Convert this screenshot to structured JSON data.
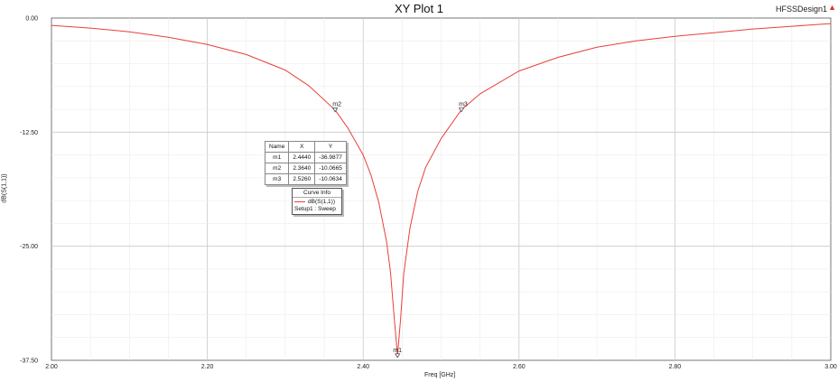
{
  "title": "XY Plot 1",
  "design_name": "HFSSDesign1",
  "colors": {
    "curve": "#e8403a",
    "grid": "#d4d4d4",
    "axis": "#555555"
  },
  "chart_data": {
    "type": "line",
    "title": "XY Plot 1",
    "xlabel": "Freq [GHz]",
    "ylabel": "dB(S(1,1))",
    "xlim": [
      2.0,
      3.0
    ],
    "ylim": [
      -37.5,
      0.0
    ],
    "x_ticks": [
      "2.00",
      "2.20",
      "2.40",
      "2.60",
      "2.80",
      "3.00"
    ],
    "y_ticks": [
      "0.00",
      "-12.50",
      "-25.00",
      "-37.50"
    ],
    "grid": true,
    "series": [
      {
        "name": "dB(S(1,1))",
        "x": [
          2.0,
          2.05,
          2.1,
          2.15,
          2.2,
          2.25,
          2.3,
          2.33,
          2.364,
          2.38,
          2.4,
          2.41,
          2.42,
          2.43,
          2.435,
          2.44,
          2.444,
          2.448,
          2.452,
          2.46,
          2.47,
          2.48,
          2.5,
          2.526,
          2.55,
          2.6,
          2.65,
          2.7,
          2.75,
          2.8,
          2.85,
          2.9,
          2.95,
          3.0
        ],
        "y": [
          -0.8,
          -1.1,
          -1.5,
          -2.1,
          -2.9,
          -4.0,
          -5.7,
          -7.4,
          -10.07,
          -12.0,
          -15.0,
          -17.2,
          -20.2,
          -24.5,
          -27.8,
          -33.0,
          -36.99,
          -33.0,
          -28.0,
          -23.0,
          -19.0,
          -16.4,
          -13.2,
          -10.06,
          -8.3,
          -5.8,
          -4.3,
          -3.2,
          -2.5,
          -2.0,
          -1.6,
          -1.2,
          -0.9,
          -0.6
        ]
      }
    ],
    "markers": [
      {
        "name": "m1",
        "x": 2.444,
        "y": -36.9877
      },
      {
        "name": "m2",
        "x": 2.364,
        "y": -10.0665
      },
      {
        "name": "m3",
        "x": 2.526,
        "y": -10.0634
      }
    ]
  },
  "marker_table": {
    "headers": [
      "Name",
      "X",
      "Y"
    ],
    "rows": [
      [
        "m1",
        "2.4440",
        "-36.9877"
      ],
      [
        "m2",
        "2.3640",
        "-10.0665"
      ],
      [
        "m3",
        "2.5260",
        "-10.0634"
      ]
    ]
  },
  "curve_info": {
    "title": "Curve Info",
    "entry": "dB(S(1,1))",
    "setup": "Setup1 : Sweep"
  }
}
